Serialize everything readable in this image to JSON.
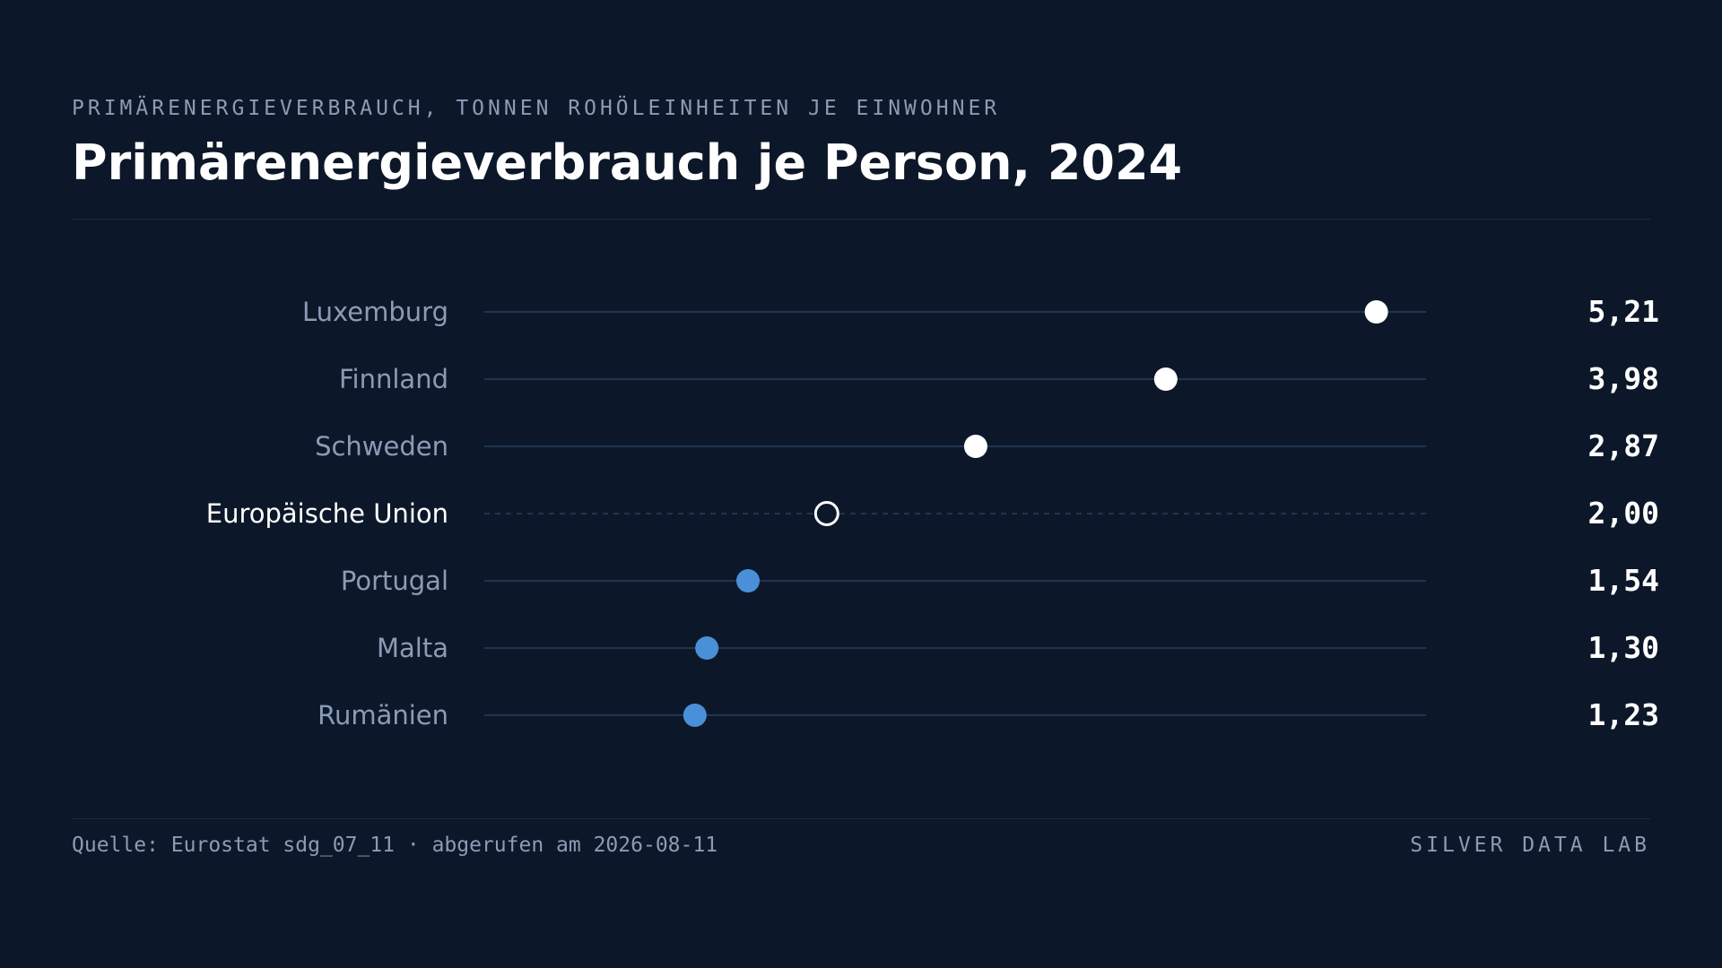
{
  "header": {
    "eyebrow": "PRIMÄRENERGIEVERBRAUCH, TONNEN ROHÖLEINHEITEN JE EINWOHNER",
    "title": "Primärenergieverbrauch je Person, 2024"
  },
  "chart_data": {
    "type": "dot",
    "title": "Primärenergieverbrauch je Person, 2024",
    "subtitle": "PRIMÄRENERGIEVERBRAUCH, TONNEN ROHÖLEINHEITEN JE EINWOHNER",
    "xlim": [
      0,
      5.5
    ],
    "grid": false,
    "rows": [
      {
        "label": "Luxemburg",
        "value": 5.21,
        "value_label": "5,21",
        "kind": "above"
      },
      {
        "label": "Finnland",
        "value": 3.98,
        "value_label": "3,98",
        "kind": "above"
      },
      {
        "label": "Schweden",
        "value": 2.87,
        "value_label": "2,87",
        "kind": "above"
      },
      {
        "label": "Europäische Union",
        "value": 2.0,
        "value_label": "2,00",
        "kind": "reference"
      },
      {
        "label": "Portugal",
        "value": 1.54,
        "value_label": "1,54",
        "kind": "below"
      },
      {
        "label": "Malta",
        "value": 1.3,
        "value_label": "1,30",
        "kind": "below"
      },
      {
        "label": "Rumänien",
        "value": 1.23,
        "value_label": "1,23",
        "kind": "below"
      }
    ],
    "colors": {
      "above": "#ffffff",
      "below": "#4a90d9",
      "reference": "#ffffff",
      "track": "#1f3550",
      "label": "#8c9bb5",
      "label_reference": "#ffffff",
      "value": "#ffffff"
    }
  },
  "footer": {
    "source": "Quelle: Eurostat sdg_07_11 · abgerufen am 2026-08-11",
    "brand": "SILVER DATA LAB"
  }
}
